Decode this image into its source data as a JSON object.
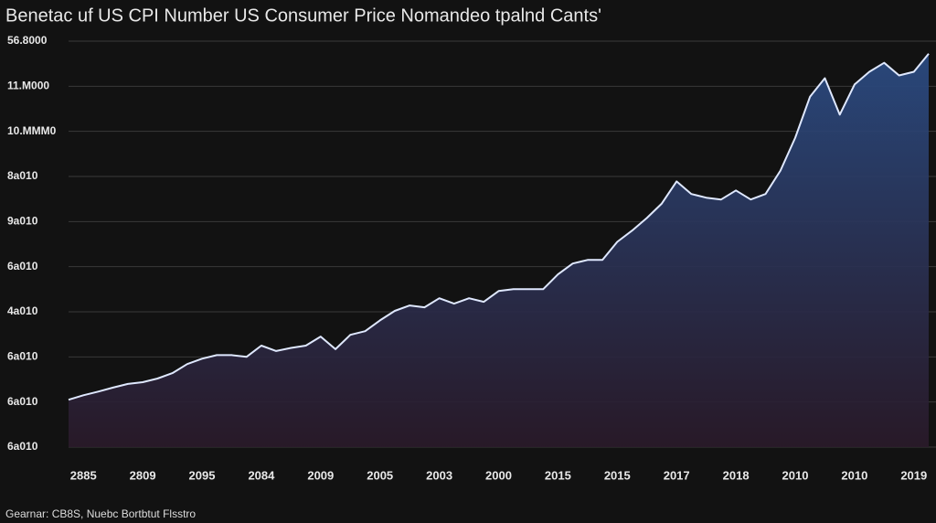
{
  "chart_data": {
    "type": "area",
    "title": "Benetac uf US CPI Number US Consumer Price Nomandeo tpalnd Cants'",
    "footnote": "Gearnar: CB8S, Nuebc Bortbtut Flsstro",
    "categories": [
      null,
      "2885",
      null,
      null,
      null,
      "2809",
      null,
      null,
      null,
      "2095",
      null,
      null,
      null,
      "2084",
      null,
      null,
      null,
      "2009",
      null,
      null,
      null,
      "2005",
      null,
      null,
      null,
      "2003",
      null,
      null,
      null,
      "2000",
      null,
      null,
      null,
      "2015",
      null,
      null,
      null,
      "2015",
      null,
      null,
      null,
      "2017",
      null,
      null,
      null,
      "2018",
      null,
      null,
      null,
      "2010",
      null,
      null,
      null,
      "2010",
      null,
      null,
      null,
      "2019",
      null
    ],
    "series": [
      {
        "color": "#dfe8ff",
        "fill": "#2a4a80",
        "values": [
          1.05,
          1.15,
          1.23,
          1.32,
          1.4,
          1.44,
          1.52,
          1.64,
          1.84,
          1.96,
          2.04,
          2.04,
          2.0,
          2.25,
          2.13,
          2.2,
          2.25,
          2.45,
          2.17,
          2.49,
          2.57,
          2.81,
          3.02,
          3.14,
          3.1,
          3.3,
          3.18,
          3.3,
          3.22,
          3.46,
          3.5,
          3.5,
          3.5,
          3.83,
          4.07,
          4.15,
          4.15,
          4.55,
          4.8,
          5.08,
          5.4,
          5.89,
          5.61,
          5.53,
          5.49,
          5.69,
          5.49,
          5.61,
          6.13,
          6.86,
          7.77,
          8.18,
          7.37,
          8.04,
          8.32,
          8.52,
          8.24,
          8.32,
          8.72
        ]
      }
    ],
    "ylim": [
      0,
      9
    ],
    "yticks": [
      {
        "value": 0,
        "label": "6a010"
      },
      {
        "value": 1,
        "label": "6a010"
      },
      {
        "value": 2,
        "label": "6a010"
      },
      {
        "value": 3,
        "label": "4a010"
      },
      {
        "value": 4,
        "label": "6a010"
      },
      {
        "value": 5,
        "label": "9a010"
      },
      {
        "value": 6,
        "label": "8a010"
      },
      {
        "value": 7,
        "label": "10.MMM0"
      },
      {
        "value": 8,
        "label": "11.M000"
      },
      {
        "value": 9,
        "label": "56.8000"
      }
    ],
    "grid": true
  }
}
